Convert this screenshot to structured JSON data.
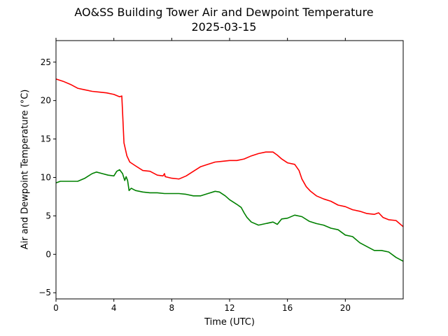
{
  "chart_data": {
    "type": "line",
    "title": "AO&SS Building Tower Air and Dewpoint Temperature",
    "subtitle": "2025-03-15",
    "xlabel": "Time (UTC)",
    "ylabel": "Air and Dewpoint Temperature (°C)",
    "xlim": [
      0,
      24
    ],
    "ylim": [
      -5.8,
      27.8
    ],
    "xticks": [
      0,
      4,
      8,
      12,
      16,
      20
    ],
    "xtick_labels": [
      "0",
      "4",
      "8",
      "12",
      "16",
      "20"
    ],
    "yticks": [
      -5,
      0,
      5,
      10,
      15,
      20,
      25
    ],
    "ytick_labels": [
      "−5",
      "0",
      "5",
      "10",
      "15",
      "20",
      "25"
    ],
    "grid": false,
    "series": [
      {
        "color": "#ff0000",
        "x": [
          0,
          0.5,
          1,
          1.5,
          2,
          2.5,
          3,
          3.5,
          4,
          4.4,
          4.55,
          4.6,
          4.7,
          4.9,
          5.1,
          5.5,
          6,
          6.5,
          7,
          7.4,
          7.5,
          7.55,
          8,
          8.5,
          9,
          9.5,
          10,
          10.5,
          11,
          11.5,
          12,
          12.5,
          13,
          13.5,
          14,
          14.5,
          15,
          15.3,
          15.6,
          16,
          16.5,
          16.8,
          17,
          17.3,
          17.6,
          18,
          18.5,
          19,
          19.5,
          20,
          20.5,
          21,
          21.5,
          22,
          22.3,
          22.6,
          23,
          23.5,
          24
        ],
        "values": [
          22.8,
          22.5,
          22.1,
          21.6,
          21.4,
          21.2,
          21.1,
          21.0,
          20.8,
          20.5,
          20.6,
          18.5,
          14.5,
          12.8,
          12.0,
          11.5,
          10.9,
          10.8,
          10.3,
          10.2,
          10.5,
          10.1,
          9.9,
          9.8,
          10.2,
          10.8,
          11.4,
          11.7,
          12.0,
          12.1,
          12.2,
          12.2,
          12.4,
          12.8,
          13.1,
          13.3,
          13.3,
          12.9,
          12.4,
          11.9,
          11.7,
          10.9,
          9.8,
          8.8,
          8.2,
          7.6,
          7.2,
          6.9,
          6.4,
          6.2,
          5.8,
          5.6,
          5.3,
          5.2,
          5.4,
          4.8,
          4.5,
          4.4,
          3.6
        ]
      },
      {
        "color": "#008000",
        "x": [
          0,
          0.3,
          0.6,
          1,
          1.5,
          2,
          2.5,
          2.8,
          3.2,
          3.6,
          4,
          4.2,
          4.4,
          4.6,
          4.75,
          4.85,
          4.95,
          5.05,
          5.2,
          5.5,
          6,
          6.5,
          7,
          7.5,
          8,
          8.5,
          9,
          9.5,
          10,
          10.5,
          11,
          11.3,
          11.7,
          12,
          12.5,
          12.8,
          13,
          13.2,
          13.5,
          14,
          14.5,
          15,
          15.3,
          15.6,
          16,
          16.5,
          17,
          17.5,
          18,
          18.5,
          19,
          19.5,
          20,
          20.5,
          21,
          21.5,
          22,
          22.5,
          23,
          23.5,
          24
        ],
        "values": [
          9.3,
          9.5,
          9.5,
          9.5,
          9.5,
          9.9,
          10.5,
          10.7,
          10.5,
          10.3,
          10.2,
          10.8,
          11.0,
          10.5,
          9.6,
          10.1,
          9.6,
          8.3,
          8.6,
          8.3,
          8.1,
          8.0,
          8.0,
          7.9,
          7.9,
          7.9,
          7.8,
          7.6,
          7.6,
          7.9,
          8.2,
          8.1,
          7.6,
          7.1,
          6.5,
          6.1,
          5.4,
          4.8,
          4.2,
          3.8,
          4.0,
          4.2,
          3.9,
          4.6,
          4.7,
          5.1,
          4.9,
          4.3,
          4.0,
          3.8,
          3.4,
          3.2,
          2.5,
          2.3,
          1.5,
          1.0,
          0.5,
          0.5,
          0.3,
          -0.4,
          -0.9
        ]
      }
    ]
  }
}
